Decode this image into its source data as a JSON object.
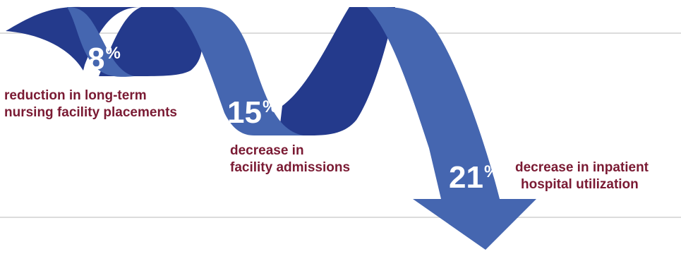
{
  "colors": {
    "ribbon_front": "#4566b0",
    "ribbon_back": "#243a8c",
    "caption": "#7a1a33",
    "rule": "#dcdcdc"
  },
  "stats": [
    {
      "value": "8",
      "unit": "%",
      "caption_lines": [
        "reduction in long-term",
        "nursing facility placements"
      ]
    },
    {
      "value": "15",
      "unit": "%",
      "caption_lines": [
        "decrease in",
        "facility admissions"
      ]
    },
    {
      "value": "21",
      "unit": "%",
      "caption_lines": [
        "decrease in inpatient",
        "hospital utilization"
      ]
    }
  ]
}
